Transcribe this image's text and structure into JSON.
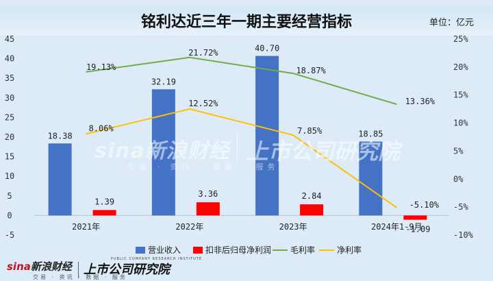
{
  "title": "铭利达近三年一期主要经营指标",
  "unit": "单位：亿元",
  "watermark": {
    "text": "sina新浪财经",
    "sub": "交易 · 资讯 · 数据 · 服务",
    "text2": "上市公司研究院"
  },
  "footer": {
    "logo_sina": "sina",
    "logo_name": "新浪财经",
    "logo_sub": "交易 · 资讯 · 数据 · 服务",
    "logo2": "上市公司研究院",
    "logo2_sub": "PUBLIC COMPANY RESEARCH INSTITUTE"
  },
  "colors": {
    "revenue": "#4472c4",
    "net_profit": "#ff0000",
    "gross_margin": "#70ad47",
    "net_margin": "#ffc000"
  },
  "chart_data": {
    "type": "bar",
    "title": "铭利达近三年一期主要经营指标",
    "categories": [
      "2021年",
      "2022年",
      "2023年",
      "2024年1-9月"
    ],
    "series": [
      {
        "name": "营业收入",
        "type": "bar",
        "axis": "left",
        "values": [
          18.38,
          32.19,
          40.7,
          18.85
        ],
        "labels": [
          "18.38",
          "32.19",
          "40.70",
          "18.85"
        ]
      },
      {
        "name": "扣非后归母净利润",
        "type": "bar",
        "axis": "left",
        "values": [
          1.39,
          3.36,
          2.84,
          -1.09
        ],
        "labels": [
          "1.39",
          "3.36",
          "2.84",
          "-1.09"
        ]
      },
      {
        "name": "毛利率",
        "type": "line",
        "axis": "right",
        "values": [
          19.13,
          21.72,
          18.87,
          13.36
        ],
        "labels": [
          "19.13%",
          "21.72%",
          "18.87%",
          "13.36%"
        ]
      },
      {
        "name": "净利率",
        "type": "line",
        "axis": "right",
        "values": [
          8.06,
          12.52,
          7.85,
          -5.1
        ],
        "labels": [
          "8.06%",
          "12.52%",
          "7.85%",
          "-5.10%"
        ]
      }
    ],
    "left_axis": {
      "min": -5,
      "max": 45,
      "step": 5,
      "ticks": [
        "-5",
        "0",
        "5",
        "10",
        "15",
        "20",
        "25",
        "30",
        "35",
        "40",
        "45"
      ]
    },
    "right_axis": {
      "min": -10,
      "max": 25,
      "step": 5,
      "ticks": [
        "-10%",
        "-5%",
        "0%",
        "5%",
        "10%",
        "15%",
        "20%",
        "25%"
      ]
    },
    "legend_position": "bottom",
    "grid": false
  }
}
